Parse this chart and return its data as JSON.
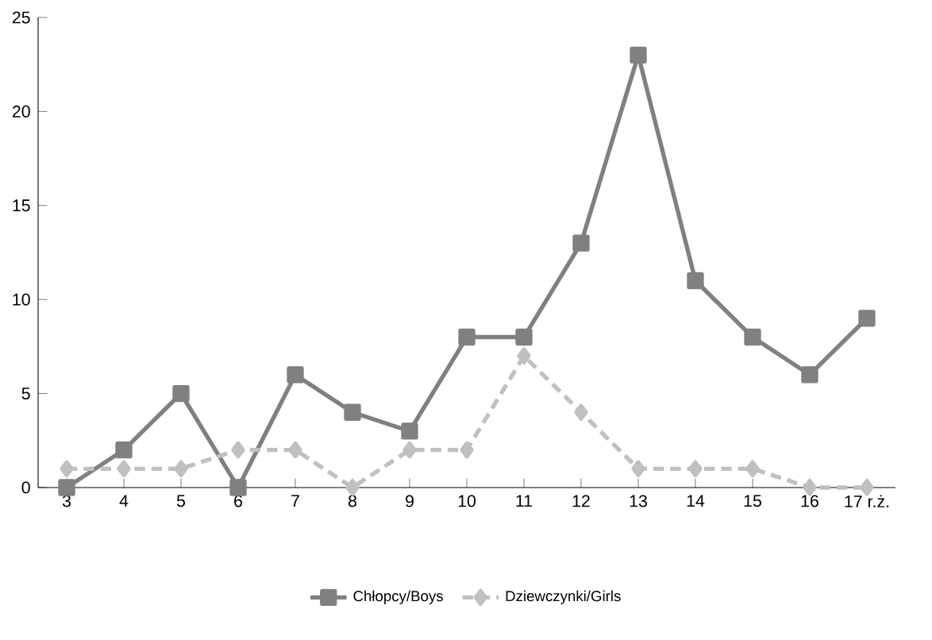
{
  "chart_data": {
    "type": "line",
    "categories": [
      "3",
      "4",
      "5",
      "6",
      "7",
      "8",
      "9",
      "10",
      "11",
      "12",
      "13",
      "14",
      "15",
      "16",
      "17 r.ż."
    ],
    "series": [
      {
        "name": "Chłopcy/Boys",
        "color": "#808080",
        "marker": "square",
        "line_style": "solid",
        "values": [
          0,
          2,
          5,
          0,
          6,
          4,
          3,
          8,
          8,
          13,
          23,
          11,
          8,
          6,
          9
        ]
      },
      {
        "name": "Dziewczynki/Girls",
        "color": "#c0c0c0",
        "marker": "diamond",
        "line_style": "dashed",
        "values": [
          1,
          1,
          1,
          2,
          2,
          0,
          2,
          2,
          7,
          4,
          1,
          1,
          1,
          0,
          0
        ]
      }
    ],
    "ylim": [
      0,
      25
    ],
    "yticks": [
      0,
      5,
      10,
      15,
      20,
      25
    ],
    "grid": false,
    "legend": "bottom"
  }
}
